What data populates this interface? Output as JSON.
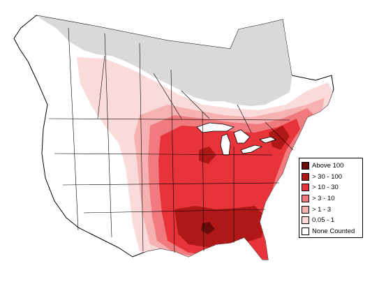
{
  "legend": {
    "items": [
      {
        "label": "Above 100",
        "color": "#6b0a0a"
      },
      {
        "label": "> 30 - 100",
        "color": "#b01818"
      },
      {
        "label": "> 10 - 30",
        "color": "#e6343a"
      },
      {
        "label": "> 3 - 10",
        "color": "#f07a7d"
      },
      {
        "label": "> 1 - 3",
        "color": "#f6b1b1"
      },
      {
        "label": "0.05 - 1",
        "color": "#fbdada"
      },
      {
        "label": "None Counted",
        "color": "#ffffff"
      }
    ]
  },
  "colors": {
    "not_surveyed": "#d9d9d9",
    "water": "#ffffff",
    "border": "#000000"
  }
}
